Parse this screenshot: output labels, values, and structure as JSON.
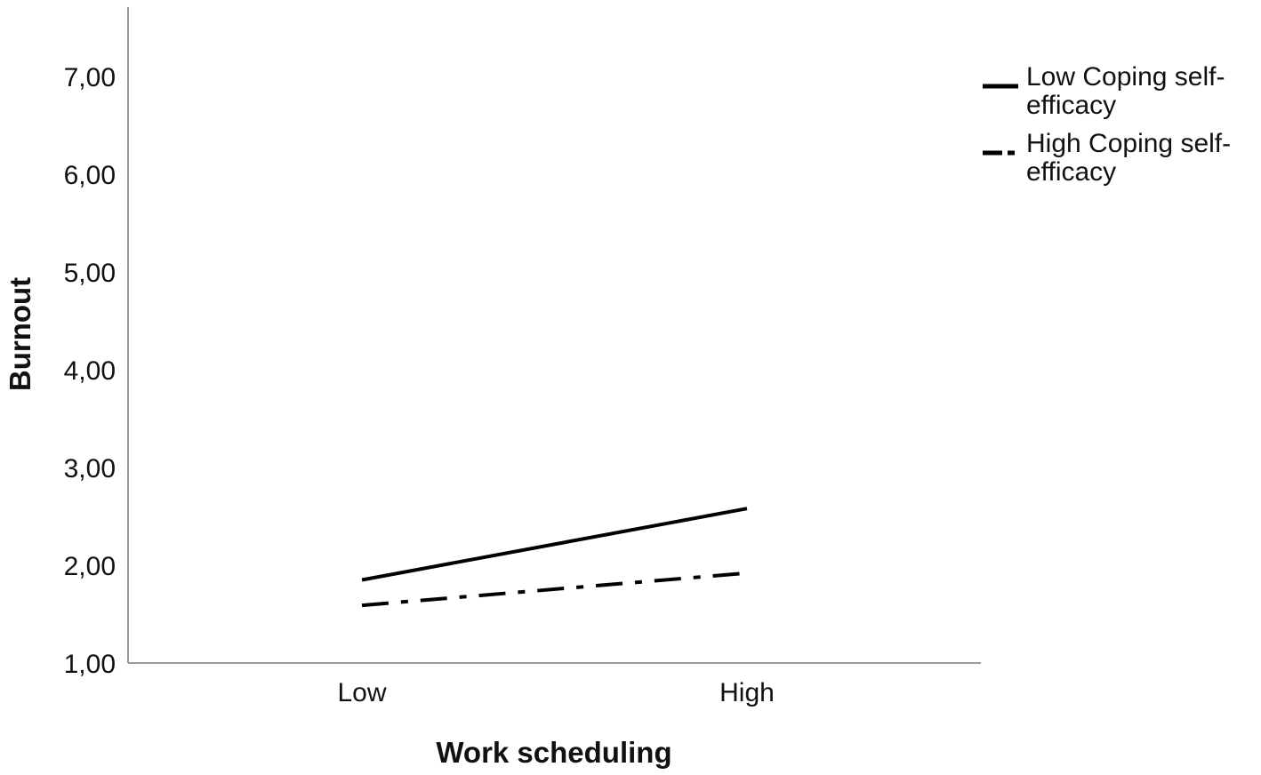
{
  "chart_data": {
    "type": "line",
    "title": "",
    "xlabel": "Work scheduling",
    "ylabel": "Burnout",
    "categories": [
      "Low",
      "High"
    ],
    "y_ticks": [
      "1,00",
      "2,00",
      "3,00",
      "4,00",
      "5,00",
      "6,00",
      "7,00"
    ],
    "y_tick_values": [
      1,
      2,
      3,
      4,
      5,
      6,
      7
    ],
    "ylim": [
      1,
      7.7
    ],
    "grid": false,
    "legend_position": "top-right",
    "series": [
      {
        "name": "Low Coping self-efficacy",
        "legend_lines": [
          "Low Coping self-",
          "efficacy"
        ],
        "line_style": "solid",
        "color": "#000000",
        "values": [
          1.85,
          2.58
        ]
      },
      {
        "name": "High Coping self-efficacy",
        "legend_lines": [
          "High Coping self-",
          "efficacy"
        ],
        "line_style": "dash-dot",
        "color": "#000000",
        "values": [
          1.59,
          1.92
        ]
      }
    ]
  }
}
